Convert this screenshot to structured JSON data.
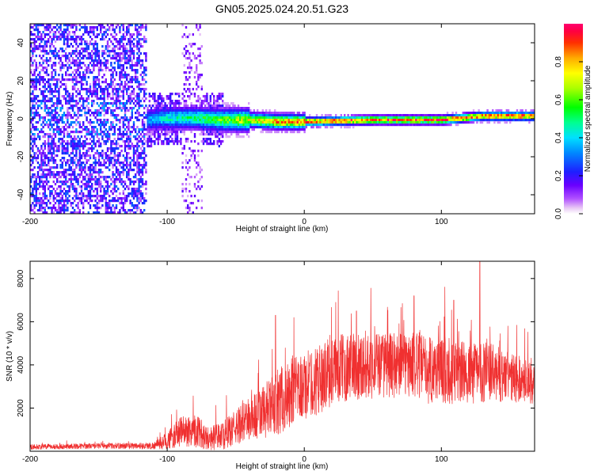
{
  "title": "GN05.2025.024.20.51.G23",
  "colors": {
    "snr_line": "#f03030",
    "frame": "#000000"
  },
  "chart_data": [
    {
      "type": "heatmap",
      "xlabel": "Height of straight line (km)",
      "ylabel": "Frequency (Hz)",
      "xlim": [
        -200,
        168
      ],
      "ylim": [
        -50,
        50
      ],
      "xticks": [
        -200,
        -100,
        0,
        100
      ],
      "yticks": [
        -40,
        -20,
        0,
        20,
        40
      ],
      "colorbar": {
        "label": "Normalized spectral amplitude",
        "range": [
          0,
          1
        ],
        "ticks": [
          "0.0",
          "0.2",
          "0.4",
          "0.6",
          "0.8"
        ],
        "colormap": "rainbow-magenta-to-red"
      },
      "ridge": {
        "description_free_values": true,
        "x": [
          -115,
          -100,
          -80,
          -60,
          -40,
          -20,
          0,
          50,
          100,
          130,
          168
        ],
        "frequency": [
          0,
          1,
          1,
          0,
          0,
          -1,
          -1,
          0,
          0,
          2,
          2
        ],
        "amplitude": [
          0.35,
          0.45,
          0.5,
          0.6,
          0.75,
          0.85,
          0.9,
          0.95,
          0.95,
          0.9,
          0.95
        ]
      },
      "noise_region": {
        "x_range": [
          -200,
          -115
        ],
        "amplitude_max": 0.25
      },
      "noise_column": {
        "x_range": [
          -90,
          -75
        ],
        "amplitude_max": 0.15
      }
    },
    {
      "type": "line",
      "xlabel": "Height of straight line (km)",
      "ylabel": "SNR (10 * v/v)",
      "xlim": [
        -200,
        168
      ],
      "ylim": [
        0,
        8800
      ],
      "xticks": [
        -200,
        -100,
        0,
        100
      ],
      "yticks": [
        2000,
        4000,
        6000,
        8000
      ],
      "envelope": {
        "x": [
          -200,
          -150,
          -110,
          -100,
          -90,
          -80,
          -70,
          -60,
          -50,
          -40,
          -30,
          -20,
          -10,
          0,
          10,
          20,
          30,
          40,
          60,
          80,
          90,
          100,
          110,
          120,
          130,
          140,
          150,
          160,
          168
        ],
        "base": [
          200,
          250,
          250,
          500,
          900,
          1000,
          600,
          700,
          1100,
          1500,
          1800,
          2200,
          2600,
          3000,
          3300,
          3700,
          3900,
          4000,
          4000,
          4000,
          3800,
          3800,
          3700,
          3600,
          3700,
          3600,
          3400,
          3300,
          3200
        ],
        "amp": [
          150,
          150,
          200,
          500,
          900,
          1000,
          700,
          800,
          1000,
          1300,
          1600,
          1800,
          2000,
          2000,
          2000,
          2000,
          2000,
          2000,
          1900,
          1900,
          2000,
          2000,
          1900,
          1800,
          1800,
          1600,
          1500,
          1300,
          1300
        ]
      },
      "peaks": [
        {
          "x": 128,
          "y": 8800
        },
        {
          "x": 80,
          "y": 7200
        },
        {
          "x": 109,
          "y": 7000
        },
        {
          "x": -21,
          "y": 6300
        },
        {
          "x": 38,
          "y": 6500
        }
      ]
    }
  ]
}
